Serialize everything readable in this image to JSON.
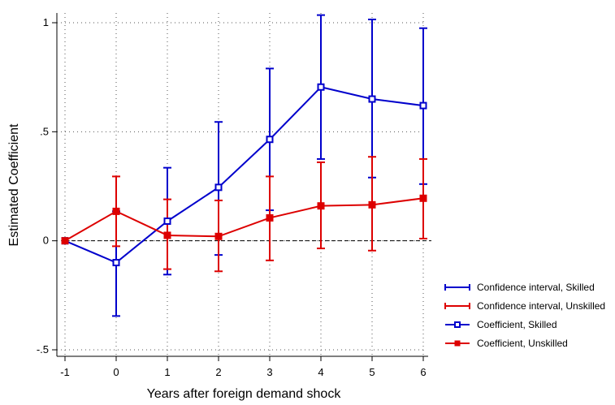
{
  "chart_data": {
    "type": "line",
    "title": "",
    "xlabel": "Years after foreign demand shock",
    "ylabel": "Estimated Coefficient",
    "x": [
      -1,
      0,
      1,
      2,
      3,
      4,
      5,
      6
    ],
    "xticks": [
      -1,
      0,
      1,
      2,
      3,
      4,
      5,
      6
    ],
    "xlim": [
      -1,
      6
    ],
    "yticks": [
      1,
      0.5,
      0,
      -0.5
    ],
    "ytick_labels": [
      "1",
      ".5",
      "0",
      "-.5"
    ],
    "ylim": [
      -0.52,
      1.04
    ],
    "reference_line": {
      "y": 0,
      "style": "dashed"
    },
    "grid": {
      "x": true,
      "y": true,
      "style": "dotted"
    },
    "series": [
      {
        "name": "Coefficient, Skilled",
        "ci_name": "Confidence interval, Skilled",
        "color": "#0000cc",
        "marker": "hollow-square",
        "values": [
          0,
          -0.1,
          0.09,
          0.245,
          0.465,
          0.705,
          0.65,
          0.62
        ],
        "ci_low": [
          null,
          -0.345,
          -0.155,
          -0.065,
          0.14,
          0.375,
          0.29,
          0.26
        ],
        "ci_high": [
          null,
          0.135,
          0.335,
          0.545,
          0.79,
          1.035,
          1.015,
          0.975
        ]
      },
      {
        "name": "Coefficient, Unskilled",
        "ci_name": "Confidence interval, Unskilled",
        "color": "#dd0000",
        "marker": "filled-square",
        "values": [
          0,
          0.135,
          0.025,
          0.02,
          0.105,
          0.16,
          0.165,
          0.195
        ],
        "ci_low": [
          null,
          -0.025,
          -0.13,
          -0.14,
          -0.09,
          -0.035,
          -0.045,
          0.01
        ],
        "ci_high": [
          null,
          0.295,
          0.19,
          0.185,
          0.295,
          0.36,
          0.385,
          0.375
        ]
      }
    ],
    "legend": {
      "position": "bottom-right",
      "entries": [
        {
          "label": "Confidence interval, Skilled",
          "kind": "ci",
          "series": 0
        },
        {
          "label": "Confidence interval, Unskilled",
          "kind": "ci",
          "series": 1
        },
        {
          "label": "Coefficient, Skilled",
          "kind": "coef",
          "series": 0
        },
        {
          "label": "Coefficient, Unskilled",
          "kind": "coef",
          "series": 1
        }
      ]
    }
  }
}
